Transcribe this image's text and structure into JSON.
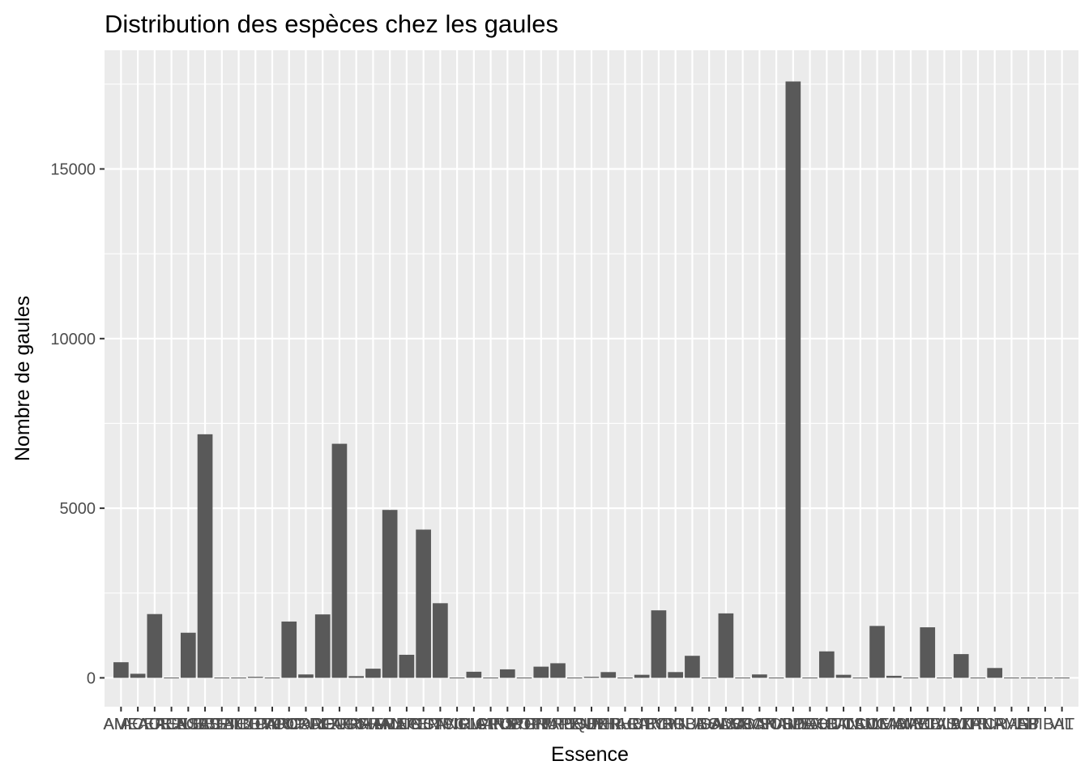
{
  "chart_data": {
    "type": "bar",
    "title": "Distribution des espèces chez les gaules",
    "xlabel": "Essence",
    "ylabel": "Nombre de gaules",
    "ylim": [
      -850,
      18500
    ],
    "yticks": [
      0,
      5000,
      10000,
      15000
    ],
    "grid": true,
    "legend": "none",
    "colors": {
      "panel": "#ebebeb",
      "grid": "#ffffff",
      "bar": "#595959",
      "tick_text": "#4d4d4d"
    },
    "categories": [
      "AME",
      "AMEAUR",
      "ACEPEN",
      "ACERUB",
      "ACESAC",
      "ACESPI",
      "BETALL",
      "BETCOR",
      "BETPAP",
      "BETPOP",
      "CARCAR",
      "CORALT",
      "CORCOR",
      "DIELON",
      "FAGGRA",
      "FRAAME",
      "FRANIG",
      "FRAPEN",
      "LONCAN",
      "OSTVIR",
      "PICGLA",
      "PICMAR",
      "PICRUB",
      "PINSTR",
      "POPGRA",
      "POPTRE",
      "PRUPEN",
      "PRUSER",
      "PRUVIR",
      "QUERUB",
      "RHACAT",
      "RHUTYP",
      "RIBCYN",
      "RIBGLA",
      "RUBIDA",
      "RUBODO",
      "SALSP",
      "SAMCAN",
      "SAMPUB",
      "SORAME",
      "SORDEC",
      "SPIALB",
      "TAXCAN",
      "THUOCC",
      "TILAME",
      "TSUCAN",
      "ULMAME",
      "VIBACE",
      "VIBCAS",
      "VIBLAN",
      "VIBTRI",
      "VITRIP",
      "ZANAME",
      "CRASP",
      "LIT",
      "ABIBAL",
      "VIT"
    ],
    "values": [
      460,
      120,
      1880,
      8,
      1330,
      7180,
      8,
      8,
      30,
      8,
      1660,
      100,
      1870,
      6900,
      50,
      270,
      4950,
      680,
      4370,
      2200,
      8,
      180,
      8,
      250,
      8,
      330,
      430,
      8,
      30,
      170,
      8,
      90,
      1990,
      170,
      650,
      8,
      1900,
      8,
      100,
      8,
      17580,
      8,
      780,
      90,
      8,
      1530,
      60,
      8,
      1490,
      8,
      700,
      8,
      290,
      8,
      8,
      8,
      8
    ],
    "xtick_labels": [
      "AME",
      "AMEAUR",
      "ACEPEN",
      "ACERUB",
      "ACESAC",
      "ACESPI",
      "BETALL",
      "BETCOR",
      "BETPAP",
      "BETPOP",
      "CARCAR",
      "CORALT",
      "CORCOR",
      "DIELON",
      "FAGGRA",
      "FRAAME",
      "FRANIG",
      "FRAPEN",
      "LONCAN",
      "OSTVIR",
      "PICGLA",
      "PICMAR",
      "PICRUB",
      "PINSTR",
      "POPGRA",
      "POPTRE",
      "PRUPEN",
      "PRUSER",
      "PRUVIR",
      "QUERUB",
      "RHACAT",
      "RHUTYP",
      "RIBCYN",
      "RIBGLA",
      "RUBIDA",
      "RUBODO",
      "SALSP",
      "SAMCAN",
      "SAMPUB",
      "SORAME",
      "SORDEC",
      "SPIALB",
      "TAXCAN",
      "THUOCC",
      "TILAME",
      "TSUCAN",
      "ULMAME",
      "VIBACE",
      "VIBCAS",
      "VIBLAN",
      "VIBTRI",
      "VITRIP",
      "ZANAME",
      "CRASP",
      "LIT",
      "ABIBAL",
      "VIT"
    ]
  }
}
